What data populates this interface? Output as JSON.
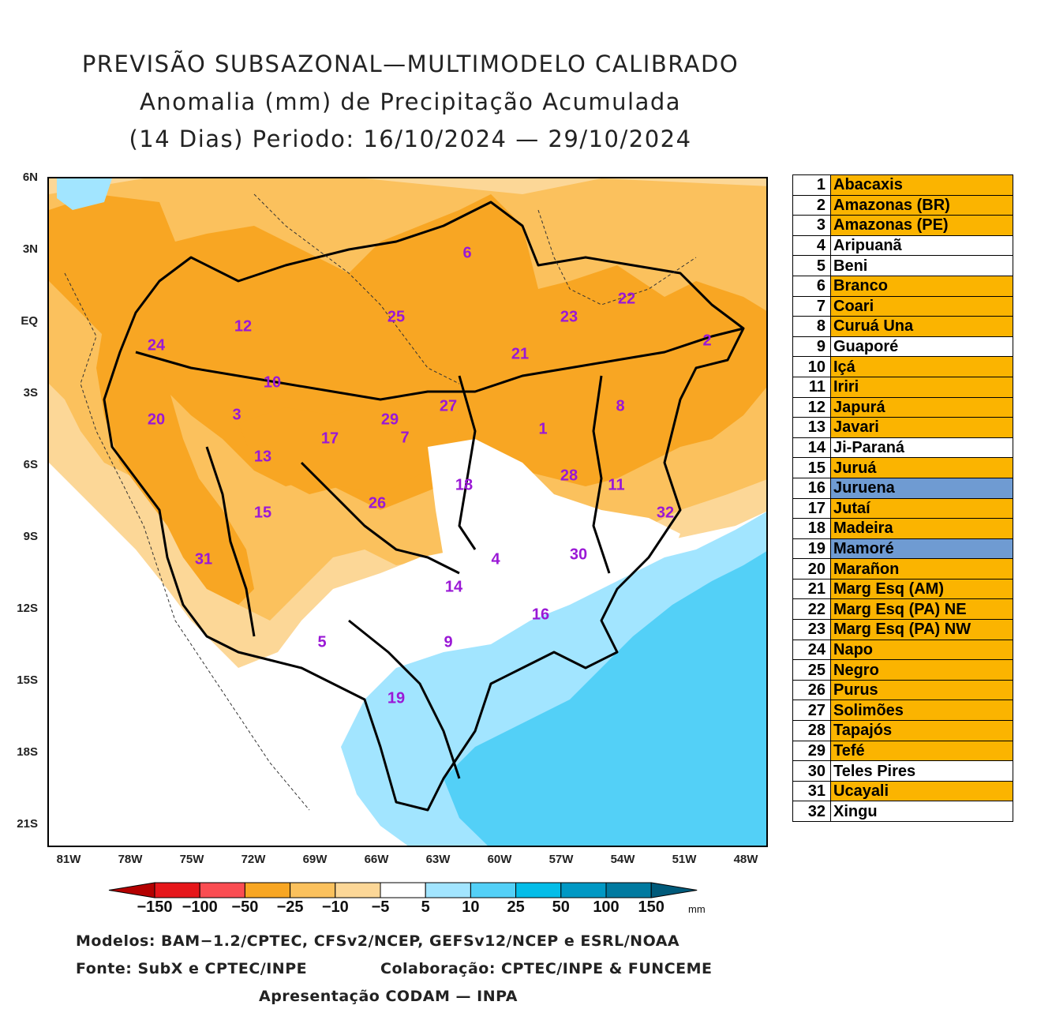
{
  "header": {
    "title_line1": "PREVISÃO SUBSAZONAL—MULTIMODELO CALIBRADO",
    "title_line2": "Anomalia (mm) de Precipitação Acumulada",
    "title_line3": "(14 Dias) Periodo: 16/10/2024 — 29/10/2024"
  },
  "map": {
    "lat_labels": [
      "6N",
      "3N",
      "EQ",
      "3S",
      "6S",
      "9S",
      "12S",
      "15S",
      "18S",
      "21S"
    ],
    "lon_labels": [
      "81W",
      "78W",
      "75W",
      "72W",
      "69W",
      "66W",
      "63W",
      "60W",
      "57W",
      "54W",
      "51W",
      "48W"
    ],
    "basin_labels": [
      "6",
      "25",
      "22",
      "23",
      "12",
      "24",
      "21",
      "2",
      "10",
      "3",
      "27",
      "8",
      "20",
      "29",
      "7",
      "1",
      "17",
      "13",
      "28",
      "18",
      "11",
      "26",
      "15",
      "32",
      "31",
      "30",
      "4",
      "14",
      "16",
      "5",
      "9",
      "19"
    ],
    "colors": {
      "dry_light": "#fcd797",
      "dry_mid": "#fbc15d",
      "dry_strong": "#f8a623",
      "wet_light": "#a2e5ff",
      "wet_mid": "#53d0f7",
      "outline": "#000000"
    }
  },
  "basins": [
    {
      "num": "1",
      "name": "Abacaxis",
      "color": "#fbb400"
    },
    {
      "num": "2",
      "name": "Amazonas (BR)",
      "color": "#fbb400"
    },
    {
      "num": "3",
      "name": "Amazonas (PE)",
      "color": "#fbb400"
    },
    {
      "num": "4",
      "name": "Aripuanã",
      "color": "#ffffff"
    },
    {
      "num": "5",
      "name": "Beni",
      "color": "#ffffff"
    },
    {
      "num": "6",
      "name": "Branco",
      "color": "#fbb400"
    },
    {
      "num": "7",
      "name": "Coari",
      "color": "#fbb400"
    },
    {
      "num": "8",
      "name": "Curuá Una",
      "color": "#fbb400"
    },
    {
      "num": "9",
      "name": "Guaporé",
      "color": "#ffffff"
    },
    {
      "num": "10",
      "name": "Içá",
      "color": "#fbb400"
    },
    {
      "num": "11",
      "name": "Iriri",
      "color": "#fbb400"
    },
    {
      "num": "12",
      "name": "Japurá",
      "color": "#fbb400"
    },
    {
      "num": "13",
      "name": "Javari",
      "color": "#fbb400"
    },
    {
      "num": "14",
      "name": "Ji-Paraná",
      "color": "#ffffff"
    },
    {
      "num": "15",
      "name": "Juruá",
      "color": "#fbb400"
    },
    {
      "num": "16",
      "name": "Juruena",
      "color": "#6f9bd2"
    },
    {
      "num": "17",
      "name": "Jutaí",
      "color": "#fbb400"
    },
    {
      "num": "18",
      "name": "Madeira",
      "color": "#fbb400"
    },
    {
      "num": "19",
      "name": "Mamoré",
      "color": "#6f9bd2"
    },
    {
      "num": "20",
      "name": "Marañon",
      "color": "#fbb400"
    },
    {
      "num": "21",
      "name": "Marg Esq (AM)",
      "color": "#fbb400"
    },
    {
      "num": "22",
      "name": "Marg Esq (PA) NE",
      "color": "#fbb400"
    },
    {
      "num": "23",
      "name": "Marg Esq (PA) NW",
      "color": "#fbb400"
    },
    {
      "num": "24",
      "name": "Napo",
      "color": "#fbb400"
    },
    {
      "num": "25",
      "name": "Negro",
      "color": "#fbb400"
    },
    {
      "num": "26",
      "name": "Purus",
      "color": "#fbb400"
    },
    {
      "num": "27",
      "name": "Solimões",
      "color": "#fbb400"
    },
    {
      "num": "28",
      "name": "Tapajós",
      "color": "#fbb400"
    },
    {
      "num": "29",
      "name": "Tefé",
      "color": "#fbb400"
    },
    {
      "num": "30",
      "name": "Teles Pires",
      "color": "#ffffff"
    },
    {
      "num": "31",
      "name": "Ucayali",
      "color": "#fbb400"
    },
    {
      "num": "32",
      "name": "Xingu",
      "color": "#ffffff"
    }
  ],
  "colorbar": {
    "labels": [
      "−150",
      "−100",
      "−50",
      "−25",
      "−10",
      "−5",
      "5",
      "10",
      "25",
      "50",
      "100",
      "150"
    ],
    "unit": "mm",
    "colors": [
      "#b40000",
      "#e6161a",
      "#fa4d52",
      "#f8a623",
      "#fbc15d",
      "#fcd797",
      "#ffffff",
      "#a2e5ff",
      "#53d0f7",
      "#04bde8",
      "#0098c4",
      "#007aa0",
      "#005a7a"
    ]
  },
  "footer": {
    "models": "Modelos: BAM−1.2/CPTEC, CFSv2/NCEP, GEFSv12/NCEP e ESRL/NOAA",
    "source": "Fonte: SubX e CPTEC/INPE",
    "collab": "Colaboração: CPTEC/INPE & FUNCEME",
    "presentation": "Apresentação CODAM — INPA"
  }
}
